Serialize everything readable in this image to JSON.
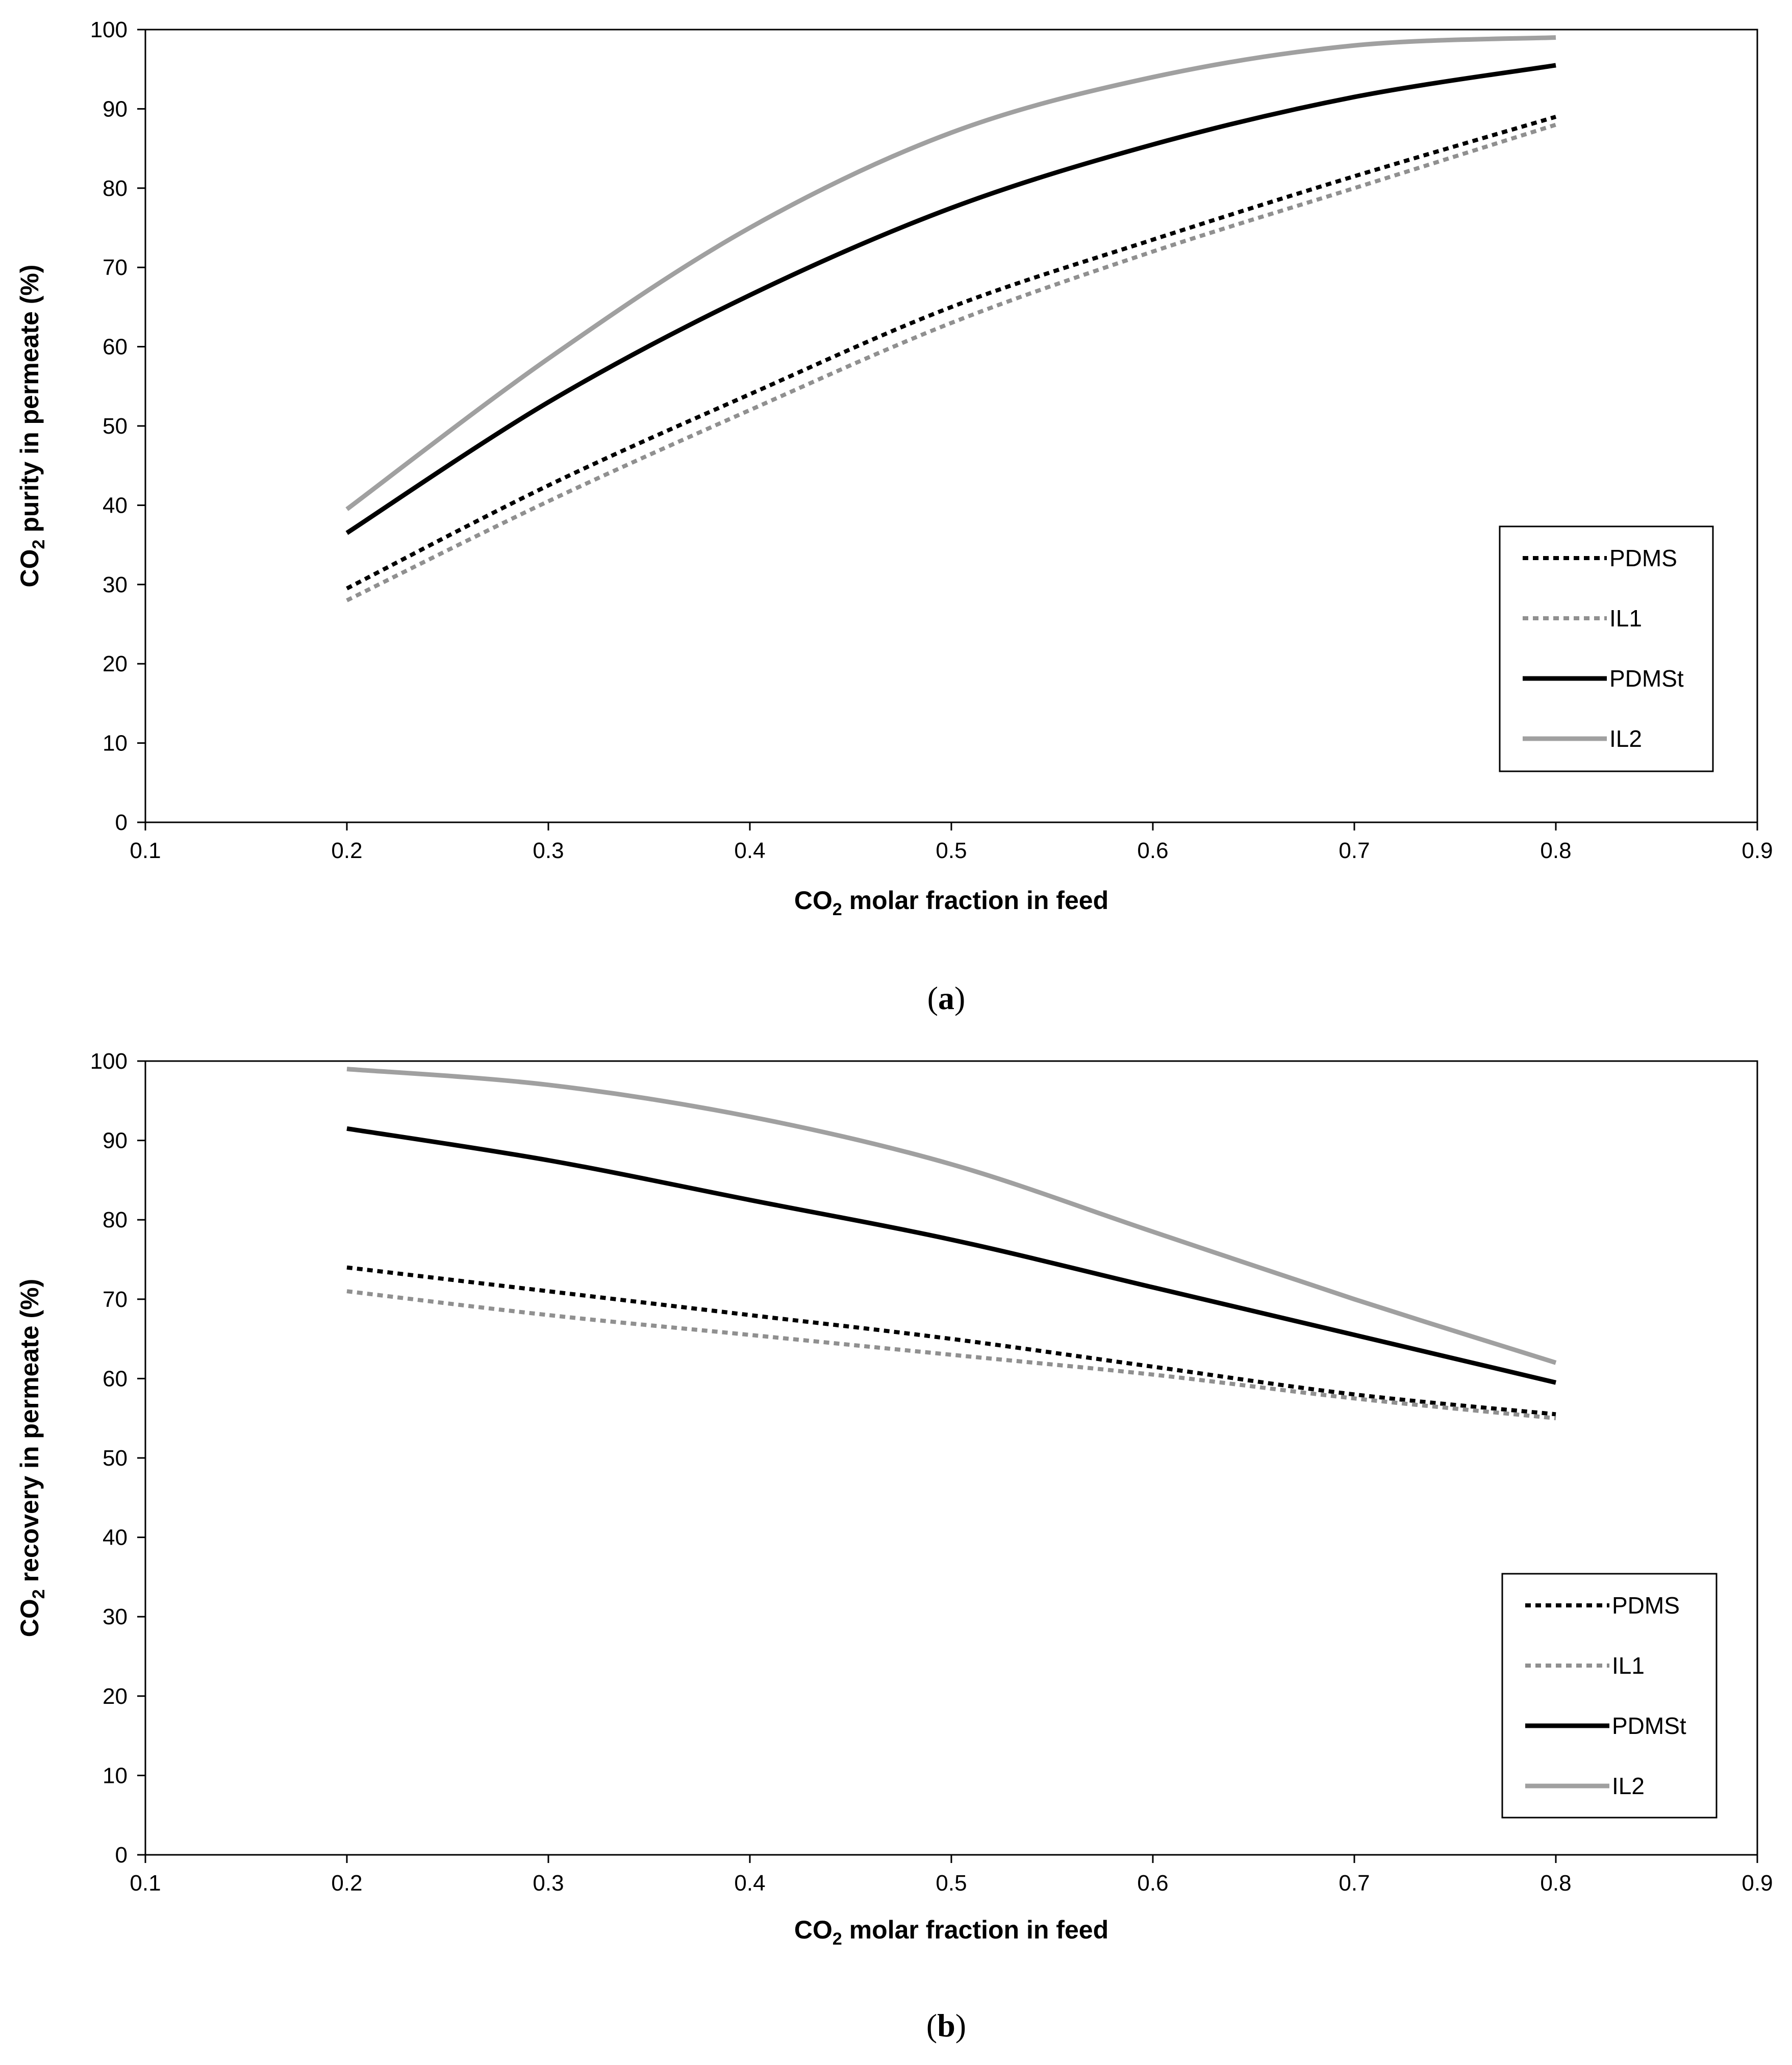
{
  "chart_data": [
    {
      "type": "line",
      "panel": "a",
      "caption_open": "(",
      "caption_letter": "a",
      "caption_close": ")",
      "xlabel_prefix": "CO",
      "xlabel_sub": "2",
      "xlabel_suffix": " molar fraction in feed",
      "ylabel_prefix": "CO",
      "ylabel_sub": "2",
      "ylabel_suffix": " purity in permeate (%)",
      "xlim": [
        0.1,
        0.9
      ],
      "ylim": [
        0,
        100
      ],
      "xticks": [
        "0.1",
        "0.2",
        "0.3",
        "0.4",
        "0.5",
        "0.6",
        "0.7",
        "0.8",
        "0.9"
      ],
      "yticks": [
        "0",
        "10",
        "20",
        "30",
        "40",
        "50",
        "60",
        "70",
        "80",
        "90",
        "100"
      ],
      "grid": false,
      "legend_position": "lower-right",
      "x": [
        0.2,
        0.3,
        0.4,
        0.5,
        0.6,
        0.7,
        0.8
      ],
      "series": [
        {
          "name": "PDMS",
          "style": "dotted",
          "color": "#000000",
          "values": [
            29.5,
            42.5,
            54.0,
            65.0,
            73.5,
            81.5,
            89.0
          ]
        },
        {
          "name": "IL1",
          "style": "dotted",
          "color": "#909090",
          "values": [
            28.0,
            40.5,
            52.0,
            63.0,
            72.0,
            80.0,
            88.0
          ]
        },
        {
          "name": "PDMSt",
          "style": "solid",
          "color": "#000000",
          "values": [
            36.5,
            53.0,
            66.5,
            77.5,
            85.5,
            91.5,
            95.5
          ]
        },
        {
          "name": "IL2",
          "style": "solid",
          "color": "#a0a0a0",
          "values": [
            39.5,
            58.5,
            75.0,
            87.0,
            94.0,
            98.0,
            99.0
          ]
        }
      ]
    },
    {
      "type": "line",
      "panel": "b",
      "caption_open": "(",
      "caption_letter": "b",
      "caption_close": ")",
      "xlabel_prefix": "CO",
      "xlabel_sub": "2",
      "xlabel_suffix": " molar fraction in feed",
      "ylabel_prefix": "CO",
      "ylabel_sub": "2",
      "ylabel_suffix": " recovery in permeate (%)",
      "xlim": [
        0.1,
        0.9
      ],
      "ylim": [
        0,
        100
      ],
      "xticks": [
        "0.1",
        "0.2",
        "0.3",
        "0.4",
        "0.5",
        "0.6",
        "0.7",
        "0.8",
        "0.9"
      ],
      "yticks": [
        "0",
        "10",
        "20",
        "30",
        "40",
        "50",
        "60",
        "70",
        "80",
        "90",
        "100"
      ],
      "grid": false,
      "legend_position": "lower-right",
      "x": [
        0.2,
        0.3,
        0.4,
        0.5,
        0.6,
        0.7,
        0.8
      ],
      "series": [
        {
          "name": "PDMS",
          "style": "dotted",
          "color": "#000000",
          "values": [
            74.0,
            71.0,
            68.0,
            65.0,
            61.5,
            58.0,
            55.5
          ]
        },
        {
          "name": "IL1",
          "style": "dotted",
          "color": "#909090",
          "values": [
            71.0,
            68.0,
            65.5,
            63.0,
            60.5,
            57.5,
            55.0
          ]
        },
        {
          "name": "PDMSt",
          "style": "solid",
          "color": "#000000",
          "values": [
            91.5,
            87.5,
            82.5,
            77.5,
            71.5,
            65.5,
            59.5
          ]
        },
        {
          "name": "IL2",
          "style": "solid",
          "color": "#a0a0a0",
          "values": [
            99.0,
            97.0,
            93.0,
            87.0,
            78.5,
            70.0,
            62.0
          ]
        }
      ]
    }
  ]
}
